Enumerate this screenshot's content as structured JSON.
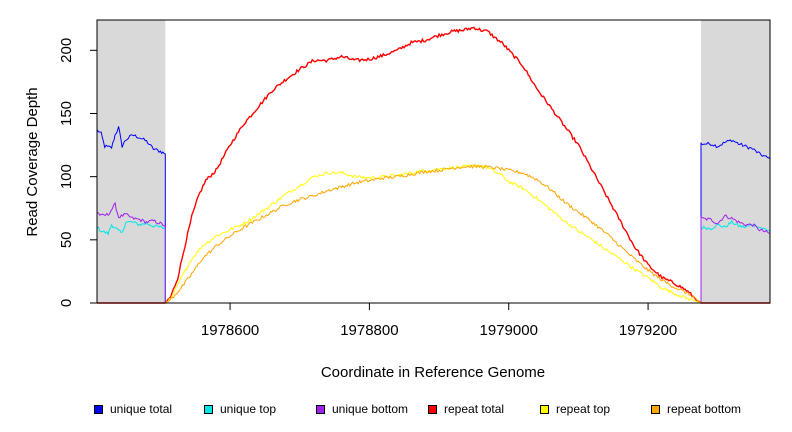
{
  "chart_data": {
    "type": "line",
    "title": "",
    "xlabel": "Coordinate in Reference Genome",
    "ylabel": "Read Coverage Depth",
    "xlim": [
      1978409,
      1979375
    ],
    "ylim": [
      0,
      224
    ],
    "x_ticks": [
      1978600,
      1978800,
      1979000,
      1979200
    ],
    "x_tick_labels": [
      "1978600",
      "1978800",
      "1979000",
      "1979200"
    ],
    "y_ticks": [
      0,
      50,
      100,
      150,
      200
    ],
    "y_tick_labels": [
      "0",
      "50",
      "100",
      "150",
      "200"
    ],
    "shaded_regions": [
      {
        "x_start": 1978409,
        "x_end": 1978507,
        "color": "#d9d9d9"
      },
      {
        "x_start": 1979276,
        "x_end": 1979375,
        "color": "#d9d9d9"
      }
    ],
    "series": [
      {
        "name": "unique total",
        "color": "#0000ff",
        "points": [
          [
            1978409,
            137
          ],
          [
            1978415,
            134
          ],
          [
            1978420,
            124
          ],
          [
            1978430,
            123
          ],
          [
            1978435,
            133
          ],
          [
            1978440,
            139
          ],
          [
            1978445,
            124
          ],
          [
            1978450,
            129
          ],
          [
            1978460,
            133
          ],
          [
            1978470,
            131
          ],
          [
            1978480,
            128
          ],
          [
            1978490,
            122
          ],
          [
            1978500,
            120
          ],
          [
            1978507,
            118
          ],
          [
            1978507,
            0
          ],
          [
            1979276,
            0
          ],
          [
            1979276,
            126
          ],
          [
            1979290,
            126
          ],
          [
            1979300,
            124
          ],
          [
            1979310,
            127
          ],
          [
            1979320,
            129
          ],
          [
            1979330,
            126
          ],
          [
            1979340,
            124
          ],
          [
            1979350,
            122
          ],
          [
            1979360,
            118
          ],
          [
            1979375,
            114
          ]
        ]
      },
      {
        "name": "unique top",
        "color": "#00e5e5",
        "points": [
          [
            1978409,
            60
          ],
          [
            1978415,
            57
          ],
          [
            1978425,
            55
          ],
          [
            1978430,
            62
          ],
          [
            1978440,
            57
          ],
          [
            1978445,
            55
          ],
          [
            1978450,
            64
          ],
          [
            1978460,
            64
          ],
          [
            1978470,
            62
          ],
          [
            1978480,
            63
          ],
          [
            1978490,
            61
          ],
          [
            1978500,
            60
          ],
          [
            1978507,
            59
          ],
          [
            1978507,
            0
          ],
          [
            1979276,
            0
          ],
          [
            1979276,
            60
          ],
          [
            1979290,
            59
          ],
          [
            1979300,
            62
          ],
          [
            1979310,
            60
          ],
          [
            1979320,
            64
          ],
          [
            1979330,
            61
          ],
          [
            1979340,
            60
          ],
          [
            1979350,
            62
          ],
          [
            1979360,
            60
          ],
          [
            1979375,
            57
          ]
        ]
      },
      {
        "name": "unique bottom",
        "color": "#a020f0",
        "points": [
          [
            1978409,
            72
          ],
          [
            1978415,
            69
          ],
          [
            1978425,
            70
          ],
          [
            1978435,
            78
          ],
          [
            1978440,
            68
          ],
          [
            1978450,
            70
          ],
          [
            1978460,
            67
          ],
          [
            1978470,
            66
          ],
          [
            1978480,
            64
          ],
          [
            1978490,
            65
          ],
          [
            1978500,
            63
          ],
          [
            1978507,
            61
          ],
          [
            1978507,
            0
          ],
          [
            1979276,
            0
          ],
          [
            1979276,
            67
          ],
          [
            1979290,
            66
          ],
          [
            1979300,
            63
          ],
          [
            1979310,
            69
          ],
          [
            1979320,
            67
          ],
          [
            1979330,
            64
          ],
          [
            1979340,
            62
          ],
          [
            1979350,
            62
          ],
          [
            1979360,
            58
          ],
          [
            1979375,
            55
          ]
        ]
      },
      {
        "name": "repeat total",
        "color": "#ff0000",
        "points": [
          [
            1978409,
            0
          ],
          [
            1978507,
            0
          ],
          [
            1978515,
            5
          ],
          [
            1978525,
            20
          ],
          [
            1978535,
            45
          ],
          [
            1978545,
            68
          ],
          [
            1978555,
            85
          ],
          [
            1978565,
            97
          ],
          [
            1978580,
            105
          ],
          [
            1978600,
            125
          ],
          [
            1978620,
            142
          ],
          [
            1978640,
            155
          ],
          [
            1978660,
            168
          ],
          [
            1978680,
            177
          ],
          [
            1978700,
            185
          ],
          [
            1978720,
            192
          ],
          [
            1978740,
            192
          ],
          [
            1978760,
            195
          ],
          [
            1978780,
            192
          ],
          [
            1978800,
            193
          ],
          [
            1978820,
            196
          ],
          [
            1978840,
            200
          ],
          [
            1978860,
            206
          ],
          [
            1978880,
            208
          ],
          [
            1978900,
            212
          ],
          [
            1978920,
            215
          ],
          [
            1978935,
            216
          ],
          [
            1978950,
            218
          ],
          [
            1978960,
            216
          ],
          [
            1978970,
            215
          ],
          [
            1978980,
            210
          ],
          [
            1978990,
            206
          ],
          [
            1979000,
            200
          ],
          [
            1979020,
            188
          ],
          [
            1979040,
            170
          ],
          [
            1979060,
            155
          ],
          [
            1979080,
            140
          ],
          [
            1979100,
            125
          ],
          [
            1979120,
            105
          ],
          [
            1979140,
            85
          ],
          [
            1979160,
            65
          ],
          [
            1979180,
            45
          ],
          [
            1979200,
            30
          ],
          [
            1979220,
            20
          ],
          [
            1979240,
            15
          ],
          [
            1979255,
            10
          ],
          [
            1979265,
            5
          ],
          [
            1979276,
            0
          ],
          [
            1979375,
            0
          ]
        ]
      },
      {
        "name": "repeat top",
        "color": "#ffff00",
        "points": [
          [
            1978409,
            0
          ],
          [
            1978507,
            0
          ],
          [
            1978515,
            3
          ],
          [
            1978530,
            20
          ],
          [
            1978545,
            35
          ],
          [
            1978560,
            45
          ],
          [
            1978580,
            53
          ],
          [
            1978600,
            58
          ],
          [
            1978620,
            63
          ],
          [
            1978640,
            70
          ],
          [
            1978660,
            78
          ],
          [
            1978680,
            86
          ],
          [
            1978700,
            93
          ],
          [
            1978720,
            100
          ],
          [
            1978740,
            103
          ],
          [
            1978760,
            103
          ],
          [
            1978780,
            100
          ],
          [
            1978800,
            99
          ],
          [
            1978820,
            100
          ],
          [
            1978840,
            101
          ],
          [
            1978860,
            103
          ],
          [
            1978880,
            105
          ],
          [
            1978900,
            106
          ],
          [
            1978920,
            107
          ],
          [
            1978940,
            108
          ],
          [
            1978960,
            109
          ],
          [
            1978970,
            107
          ],
          [
            1978980,
            104
          ],
          [
            1978990,
            101
          ],
          [
            1979000,
            96
          ],
          [
            1979020,
            91
          ],
          [
            1979040,
            83
          ],
          [
            1979060,
            74
          ],
          [
            1979080,
            65
          ],
          [
            1979100,
            57
          ],
          [
            1979120,
            50
          ],
          [
            1979140,
            42
          ],
          [
            1979160,
            35
          ],
          [
            1979180,
            27
          ],
          [
            1979200,
            20
          ],
          [
            1979220,
            12
          ],
          [
            1979240,
            7
          ],
          [
            1979255,
            4
          ],
          [
            1979265,
            2
          ],
          [
            1979276,
            0
          ],
          [
            1979375,
            0
          ]
        ]
      },
      {
        "name": "repeat bottom",
        "color": "#ffa500",
        "points": [
          [
            1978409,
            0
          ],
          [
            1978507,
            0
          ],
          [
            1978515,
            3
          ],
          [
            1978530,
            12
          ],
          [
            1978545,
            23
          ],
          [
            1978560,
            35
          ],
          [
            1978580,
            45
          ],
          [
            1978600,
            53
          ],
          [
            1978620,
            60
          ],
          [
            1978640,
            66
          ],
          [
            1978660,
            72
          ],
          [
            1978680,
            78
          ],
          [
            1978700,
            82
          ],
          [
            1978720,
            85
          ],
          [
            1978740,
            89
          ],
          [
            1978760,
            92
          ],
          [
            1978780,
            95
          ],
          [
            1978800,
            97
          ],
          [
            1978820,
            99
          ],
          [
            1978840,
            100
          ],
          [
            1978860,
            102
          ],
          [
            1978880,
            104
          ],
          [
            1978900,
            105
          ],
          [
            1978920,
            107
          ],
          [
            1978940,
            108
          ],
          [
            1978960,
            108
          ],
          [
            1978980,
            107
          ],
          [
            1979000,
            105
          ],
          [
            1979020,
            103
          ],
          [
            1979040,
            98
          ],
          [
            1979060,
            90
          ],
          [
            1979080,
            80
          ],
          [
            1979100,
            72
          ],
          [
            1979120,
            64
          ],
          [
            1979140,
            55
          ],
          [
            1979160,
            45
          ],
          [
            1979180,
            35
          ],
          [
            1979200,
            26
          ],
          [
            1979220,
            18
          ],
          [
            1979240,
            12
          ],
          [
            1979255,
            8
          ],
          [
            1979265,
            5
          ],
          [
            1979276,
            0
          ],
          [
            1979375,
            0
          ]
        ]
      }
    ],
    "legend": [
      {
        "label": "unique total",
        "color": "#0000ff"
      },
      {
        "label": "unique top",
        "color": "#00e5e5"
      },
      {
        "label": "unique bottom",
        "color": "#a020f0"
      },
      {
        "label": "repeat total",
        "color": "#ff0000"
      },
      {
        "label": "repeat top",
        "color": "#ffff00"
      },
      {
        "label": "repeat bottom",
        "color": "#ffa500"
      }
    ]
  }
}
